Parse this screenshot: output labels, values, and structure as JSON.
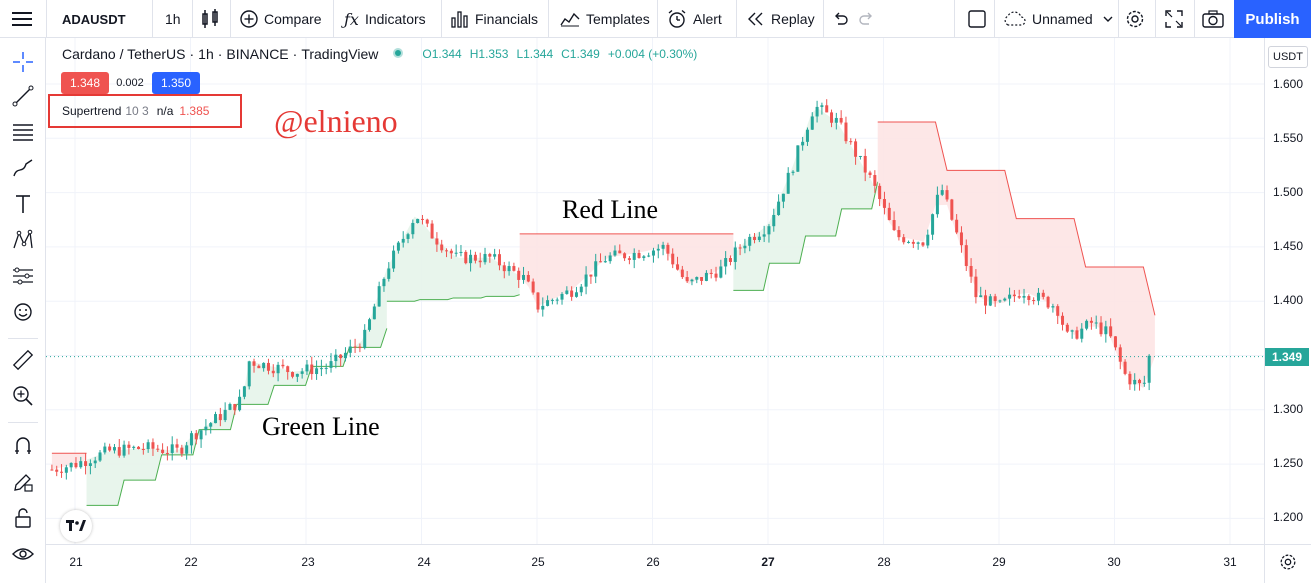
{
  "toolbar": {
    "symbol": "ADAUSDT",
    "interval": "1h",
    "compare": "Compare",
    "indicators": "Indicators",
    "financials": "Financials",
    "templates": "Templates",
    "alert": "Alert",
    "replay": "Replay",
    "layout_name": "Unnamed",
    "publish": "Publish"
  },
  "legend": {
    "title_parts": [
      "Cardano / TetherUS",
      "·",
      "1h",
      "·",
      "BINANCE",
      "·",
      "TradingView"
    ],
    "open": "O1.344",
    "high": "H1.353",
    "low": "L1.344",
    "close": "C1.349",
    "change": "+0.004 (+0.30%)",
    "bid": "1.348",
    "spread": "0.002",
    "ask": "1.350"
  },
  "indicator": {
    "name": "Supertrend",
    "params": "10 3",
    "value_na": "n/a",
    "value": "1.385"
  },
  "watermark": "@elnieno",
  "annotations": {
    "red": "Red Line",
    "green": "Green Line"
  },
  "price_axis": {
    "unit": "USDT",
    "ticks": [
      "1.600",
      "1.550",
      "1.500",
      "1.450",
      "1.400",
      "1.350",
      "1.300",
      "1.250",
      "1.200"
    ],
    "current": "1.349"
  },
  "time_axis": {
    "ticks": [
      "21",
      "22",
      "23",
      "24",
      "25",
      "26",
      "27",
      "28",
      "29",
      "30",
      "31"
    ]
  },
  "colors": {
    "up": "#26a69a",
    "down": "#ef5350",
    "accent": "#2962ff",
    "uptrend_fill": "#e6f4ea",
    "downtrend_fill": "#fde4e4"
  },
  "chart_data": {
    "type": "candlestick",
    "pair": "ADAUSDT",
    "interval": "1h",
    "ylim": [
      1.18,
      1.62
    ],
    "close_series": [
      {
        "day": 20.8,
        "value": 1.245
      },
      {
        "day": 21.0,
        "value": 1.25
      },
      {
        "day": 21.3,
        "value": 1.262
      },
      {
        "day": 21.6,
        "value": 1.265
      },
      {
        "day": 21.9,
        "value": 1.262
      },
      {
        "day": 22.0,
        "value": 1.275
      },
      {
        "day": 22.2,
        "value": 1.29
      },
      {
        "day": 22.45,
        "value": 1.31
      },
      {
        "day": 22.5,
        "value": 1.345
      },
      {
        "day": 22.7,
        "value": 1.34
      },
      {
        "day": 22.9,
        "value": 1.335
      },
      {
        "day": 23.2,
        "value": 1.34
      },
      {
        "day": 23.5,
        "value": 1.365
      },
      {
        "day": 23.7,
        "value": 1.43
      },
      {
        "day": 23.95,
        "value": 1.48
      },
      {
        "day": 24.1,
        "value": 1.46
      },
      {
        "day": 24.3,
        "value": 1.44
      },
      {
        "day": 24.6,
        "value": 1.44
      },
      {
        "day": 24.9,
        "value": 1.42
      },
      {
        "day": 25.0,
        "value": 1.395
      },
      {
        "day": 25.3,
        "value": 1.41
      },
      {
        "day": 25.6,
        "value": 1.44
      },
      {
        "day": 25.9,
        "value": 1.445
      },
      {
        "day": 26.1,
        "value": 1.45
      },
      {
        "day": 26.3,
        "value": 1.415
      },
      {
        "day": 26.6,
        "value": 1.43
      },
      {
        "day": 26.8,
        "value": 1.455
      },
      {
        "day": 27.0,
        "value": 1.47
      },
      {
        "day": 27.2,
        "value": 1.52
      },
      {
        "day": 27.4,
        "value": 1.58
      },
      {
        "day": 27.6,
        "value": 1.565
      },
      {
        "day": 27.9,
        "value": 1.51
      },
      {
        "day": 28.1,
        "value": 1.46
      },
      {
        "day": 28.35,
        "value": 1.455
      },
      {
        "day": 28.5,
        "value": 1.505
      },
      {
        "day": 28.7,
        "value": 1.44
      },
      {
        "day": 28.8,
        "value": 1.405
      },
      {
        "day": 29.0,
        "value": 1.395
      },
      {
        "day": 29.2,
        "value": 1.41
      },
      {
        "day": 29.5,
        "value": 1.395
      },
      {
        "day": 29.6,
        "value": 1.365
      },
      {
        "day": 29.8,
        "value": 1.38
      },
      {
        "day": 29.95,
        "value": 1.37
      },
      {
        "day": 30.1,
        "value": 1.33
      },
      {
        "day": 30.25,
        "value": 1.32
      },
      {
        "day": 30.3,
        "value": 1.349
      }
    ],
    "supertrend": [
      {
        "from": 20.8,
        "to": 21.1,
        "trend": "down",
        "value": 1.26
      },
      {
        "from": 21.1,
        "to": 22.4,
        "trend": "up",
        "start": 1.212,
        "end": 1.305
      },
      {
        "from": 22.4,
        "to": 23.7,
        "trend": "up",
        "start": 1.305,
        "end": 1.375
      },
      {
        "from": 23.7,
        "to": 24.85,
        "trend": "up",
        "start": 1.4,
        "end": 1.406
      },
      {
        "from": 24.85,
        "to": 26.7,
        "trend": "down",
        "value": 1.462
      },
      {
        "from": 26.7,
        "to": 27.95,
        "trend": "up",
        "start": 1.41,
        "end": 1.51
      },
      {
        "from": 27.95,
        "to": 30.35,
        "trend": "down",
        "start": 1.565,
        "end": 1.387
      }
    ]
  }
}
